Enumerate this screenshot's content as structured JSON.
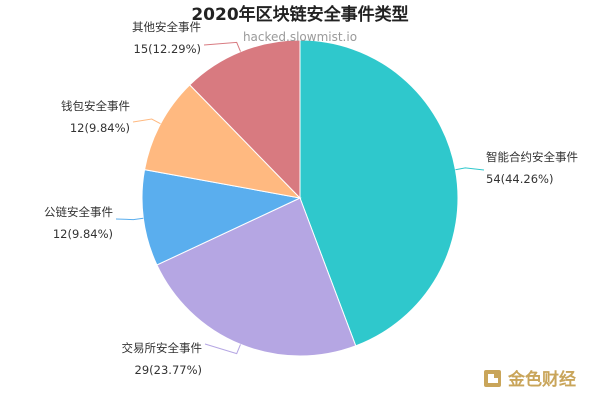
{
  "chart_data": {
    "type": "pie",
    "title": "2020年区块链安全事件类型",
    "slices": [
      {
        "name": "智能合约安全事件",
        "value": 54,
        "label": "54(44.26%)",
        "color": "#2fc8cc"
      },
      {
        "name": "交易所安全事件",
        "value": 29,
        "label": "29(23.77%)",
        "color": "#b5a6e3"
      },
      {
        "name": "公链安全事件",
        "value": 12,
        "label": "12(9.84%)",
        "color": "#5aaeee"
      },
      {
        "name": "钱包安全事件",
        "value": 12,
        "label": "12(9.84%)",
        "color": "#ffb980"
      },
      {
        "name": "其他安全事件",
        "value": 15,
        "label": "15(12.29%)",
        "color": "#d87a80"
      }
    ]
  },
  "watermark": "hacked.slowmist.io",
  "logo": {
    "text": "金色财经",
    "color": "#c9a55a"
  }
}
